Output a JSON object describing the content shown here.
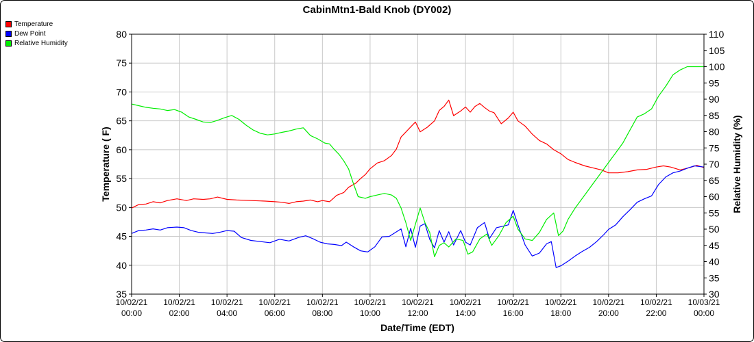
{
  "chart_data": {
    "type": "line",
    "title": "CabinMtn1-Bald Knob (DY002)",
    "xlabel": "Date/Time (EDT)",
    "ylabel": "Temperature ( F)",
    "y2label": "Relative Humidity (%)",
    "ylim": [
      35,
      80
    ],
    "y2lim": [
      30,
      110
    ],
    "xlim": [
      0,
      24
    ],
    "grid": true,
    "legend_position": "top-left",
    "x_ticks": [
      {
        "hour": 0,
        "date": "10/02/21",
        "time": "00:00"
      },
      {
        "hour": 2,
        "date": "10/02/21",
        "time": "02:00"
      },
      {
        "hour": 4,
        "date": "10/02/21",
        "time": "04:00"
      },
      {
        "hour": 6,
        "date": "10/02/21",
        "time": "06:00"
      },
      {
        "hour": 8,
        "date": "10/02/21",
        "time": "08:00"
      },
      {
        "hour": 10,
        "date": "10/02/21",
        "time": "10:00"
      },
      {
        "hour": 12,
        "date": "10/02/21",
        "time": "12:00"
      },
      {
        "hour": 14,
        "date": "10/02/21",
        "time": "14:00"
      },
      {
        "hour": 16,
        "date": "10/02/21",
        "time": "16:00"
      },
      {
        "hour": 18,
        "date": "10/02/21",
        "time": "18:00"
      },
      {
        "hour": 20,
        "date": "10/02/21",
        "time": "20:00"
      },
      {
        "hour": 22,
        "date": "10/02/21",
        "time": "22:00"
      },
      {
        "hour": 24,
        "date": "10/03/21",
        "time": "00:00"
      }
    ],
    "y_ticks": [
      35,
      40,
      45,
      50,
      55,
      60,
      65,
      70,
      75,
      80
    ],
    "y2_ticks": [
      30,
      35,
      40,
      45,
      50,
      55,
      60,
      65,
      70,
      75,
      80,
      85,
      90,
      95,
      100,
      105,
      110
    ],
    "series": [
      {
        "name": "Temperature",
        "color": "#ff0000",
        "axis": "left",
        "points": [
          [
            0,
            49.9
          ],
          [
            0.3,
            50.5
          ],
          [
            0.6,
            50.6
          ],
          [
            0.9,
            51.0
          ],
          [
            1.2,
            50.8
          ],
          [
            1.5,
            51.2
          ],
          [
            1.9,
            51.5
          ],
          [
            2.3,
            51.2
          ],
          [
            2.6,
            51.5
          ],
          [
            3.0,
            51.4
          ],
          [
            3.3,
            51.5
          ],
          [
            3.6,
            51.8
          ],
          [
            4.0,
            51.4
          ],
          [
            4.4,
            51.3
          ],
          [
            5.0,
            51.2
          ],
          [
            5.6,
            51.1
          ],
          [
            6.0,
            51.0
          ],
          [
            6.3,
            50.9
          ],
          [
            6.6,
            50.7
          ],
          [
            6.9,
            51.0
          ],
          [
            7.2,
            51.1
          ],
          [
            7.5,
            51.3
          ],
          [
            7.8,
            51.0
          ],
          [
            8.0,
            51.2
          ],
          [
            8.3,
            51.0
          ],
          [
            8.6,
            52.1
          ],
          [
            8.9,
            52.6
          ],
          [
            9.1,
            53.5
          ],
          [
            9.4,
            54.2
          ],
          [
            9.6,
            55.0
          ],
          [
            9.8,
            55.7
          ],
          [
            10.0,
            56.7
          ],
          [
            10.3,
            57.7
          ],
          [
            10.6,
            58.1
          ],
          [
            10.9,
            59.0
          ],
          [
            11.1,
            60.1
          ],
          [
            11.3,
            62.2
          ],
          [
            11.6,
            63.5
          ],
          [
            11.9,
            64.8
          ],
          [
            12.1,
            63.1
          ],
          [
            12.4,
            63.9
          ],
          [
            12.7,
            65.0
          ],
          [
            12.9,
            66.8
          ],
          [
            13.1,
            67.5
          ],
          [
            13.3,
            68.6
          ],
          [
            13.5,
            65.9
          ],
          [
            13.8,
            66.7
          ],
          [
            14.0,
            67.4
          ],
          [
            14.2,
            66.5
          ],
          [
            14.4,
            67.5
          ],
          [
            14.6,
            68.0
          ],
          [
            14.8,
            67.3
          ],
          [
            15.0,
            66.7
          ],
          [
            15.2,
            66.4
          ],
          [
            15.5,
            64.5
          ],
          [
            15.8,
            65.5
          ],
          [
            16.0,
            66.5
          ],
          [
            16.2,
            65.0
          ],
          [
            16.5,
            64.1
          ],
          [
            16.8,
            62.7
          ],
          [
            17.1,
            61.6
          ],
          [
            17.4,
            61.0
          ],
          [
            17.7,
            60.0
          ],
          [
            18.0,
            59.3
          ],
          [
            18.3,
            58.3
          ],
          [
            18.6,
            57.8
          ],
          [
            19.0,
            57.2
          ],
          [
            19.4,
            56.8
          ],
          [
            19.7,
            56.5
          ],
          [
            20.0,
            56.0
          ],
          [
            20.4,
            56.0
          ],
          [
            20.8,
            56.2
          ],
          [
            21.2,
            56.5
          ],
          [
            21.6,
            56.6
          ],
          [
            22.0,
            57.0
          ],
          [
            22.3,
            57.2
          ],
          [
            22.6,
            57.0
          ],
          [
            23.0,
            56.5
          ],
          [
            23.4,
            56.9
          ],
          [
            23.7,
            57.3
          ],
          [
            24.0,
            56.9
          ]
        ]
      },
      {
        "name": "Dew Point",
        "color": "#0000ff",
        "axis": "left",
        "points": [
          [
            0,
            45.5
          ],
          [
            0.3,
            46.0
          ],
          [
            0.6,
            46.1
          ],
          [
            0.9,
            46.3
          ],
          [
            1.2,
            46.1
          ],
          [
            1.5,
            46.5
          ],
          [
            1.9,
            46.6
          ],
          [
            2.2,
            46.5
          ],
          [
            2.5,
            46.0
          ],
          [
            2.8,
            45.7
          ],
          [
            3.1,
            45.6
          ],
          [
            3.4,
            45.5
          ],
          [
            3.7,
            45.7
          ],
          [
            4.0,
            46.0
          ],
          [
            4.3,
            45.9
          ],
          [
            4.6,
            44.8
          ],
          [
            5.0,
            44.3
          ],
          [
            5.4,
            44.1
          ],
          [
            5.8,
            43.9
          ],
          [
            6.2,
            44.5
          ],
          [
            6.6,
            44.2
          ],
          [
            7.0,
            44.8
          ],
          [
            7.3,
            45.1
          ],
          [
            7.6,
            44.6
          ],
          [
            7.9,
            44.0
          ],
          [
            8.2,
            43.7
          ],
          [
            8.5,
            43.6
          ],
          [
            8.8,
            43.4
          ],
          [
            9.0,
            44.0
          ],
          [
            9.3,
            43.2
          ],
          [
            9.6,
            42.5
          ],
          [
            9.9,
            42.3
          ],
          [
            10.2,
            43.2
          ],
          [
            10.5,
            44.9
          ],
          [
            10.8,
            45.0
          ],
          [
            11.0,
            45.5
          ],
          [
            11.3,
            46.3
          ],
          [
            11.5,
            43.2
          ],
          [
            11.7,
            46.4
          ],
          [
            11.9,
            43.1
          ],
          [
            12.1,
            46.8
          ],
          [
            12.3,
            47.2
          ],
          [
            12.5,
            44.5
          ],
          [
            12.7,
            43.0
          ],
          [
            12.9,
            46.0
          ],
          [
            13.1,
            44.0
          ],
          [
            13.3,
            45.8
          ],
          [
            13.5,
            43.5
          ],
          [
            13.8,
            46.0
          ],
          [
            14.0,
            44.0
          ],
          [
            14.2,
            43.5
          ],
          [
            14.5,
            46.5
          ],
          [
            14.8,
            47.4
          ],
          [
            15.0,
            44.6
          ],
          [
            15.3,
            46.5
          ],
          [
            15.6,
            46.8
          ],
          [
            15.8,
            47.0
          ],
          [
            16.0,
            49.5
          ],
          [
            16.2,
            47.0
          ],
          [
            16.5,
            43.5
          ],
          [
            16.8,
            41.6
          ],
          [
            17.1,
            42.1
          ],
          [
            17.4,
            43.7
          ],
          [
            17.6,
            44.1
          ],
          [
            17.8,
            39.6
          ],
          [
            18.0,
            39.9
          ],
          [
            18.3,
            40.7
          ],
          [
            18.6,
            41.6
          ],
          [
            18.9,
            42.4
          ],
          [
            19.2,
            43.1
          ],
          [
            19.5,
            44.1
          ],
          [
            19.8,
            45.3
          ],
          [
            20.0,
            46.2
          ],
          [
            20.3,
            47.0
          ],
          [
            20.6,
            48.4
          ],
          [
            20.9,
            49.6
          ],
          [
            21.2,
            50.9
          ],
          [
            21.5,
            51.5
          ],
          [
            21.8,
            52.0
          ],
          [
            22.1,
            54.0
          ],
          [
            22.4,
            55.3
          ],
          [
            22.7,
            56.0
          ],
          [
            23.0,
            56.3
          ],
          [
            23.3,
            56.8
          ],
          [
            23.6,
            57.2
          ],
          [
            24.0,
            57.0
          ]
        ]
      },
      {
        "name": "Relative Humidity",
        "color": "#00ee00",
        "axis": "right",
        "points": [
          [
            0,
            88.5
          ],
          [
            0.3,
            88.0
          ],
          [
            0.6,
            87.5
          ],
          [
            0.9,
            87.2
          ],
          [
            1.2,
            87.0
          ],
          [
            1.5,
            86.5
          ],
          [
            1.8,
            86.8
          ],
          [
            2.1,
            86.0
          ],
          [
            2.4,
            84.5
          ],
          [
            2.7,
            83.8
          ],
          [
            3.0,
            83.0
          ],
          [
            3.3,
            82.8
          ],
          [
            3.6,
            83.5
          ],
          [
            3.9,
            84.3
          ],
          [
            4.2,
            85.0
          ],
          [
            4.5,
            83.8
          ],
          [
            4.8,
            82.0
          ],
          [
            5.1,
            80.5
          ],
          [
            5.4,
            79.5
          ],
          [
            5.7,
            79.0
          ],
          [
            6.0,
            79.3
          ],
          [
            6.3,
            79.8
          ],
          [
            6.6,
            80.2
          ],
          [
            6.9,
            80.8
          ],
          [
            7.2,
            81.2
          ],
          [
            7.5,
            78.8
          ],
          [
            7.8,
            77.8
          ],
          [
            8.1,
            76.5
          ],
          [
            8.3,
            76.2
          ],
          [
            8.5,
            74.5
          ],
          [
            8.7,
            73.0
          ],
          [
            8.9,
            71.0
          ],
          [
            9.1,
            68.5
          ],
          [
            9.3,
            64.0
          ],
          [
            9.5,
            60.0
          ],
          [
            9.8,
            59.5
          ],
          [
            10.0,
            60.0
          ],
          [
            10.3,
            60.5
          ],
          [
            10.6,
            61.0
          ],
          [
            10.9,
            60.5
          ],
          [
            11.1,
            59.5
          ],
          [
            11.3,
            56.5
          ],
          [
            11.5,
            52.0
          ],
          [
            11.7,
            46.5
          ],
          [
            11.9,
            51.5
          ],
          [
            12.1,
            56.5
          ],
          [
            12.3,
            52.0
          ],
          [
            12.5,
            49.0
          ],
          [
            12.7,
            41.5
          ],
          [
            12.9,
            45.0
          ],
          [
            13.1,
            45.8
          ],
          [
            13.3,
            44.5
          ],
          [
            13.6,
            47.0
          ],
          [
            13.9,
            46.5
          ],
          [
            14.1,
            42.3
          ],
          [
            14.3,
            43.0
          ],
          [
            14.6,
            47.0
          ],
          [
            14.9,
            48.5
          ],
          [
            15.1,
            45.0
          ],
          [
            15.4,
            48.0
          ],
          [
            15.7,
            52.0
          ],
          [
            16.0,
            54.0
          ],
          [
            16.2,
            50.0
          ],
          [
            16.5,
            47.0
          ],
          [
            16.8,
            46.5
          ],
          [
            17.1,
            49.0
          ],
          [
            17.4,
            53.0
          ],
          [
            17.7,
            55.0
          ],
          [
            17.9,
            48.0
          ],
          [
            18.1,
            49.5
          ],
          [
            18.3,
            53.0
          ],
          [
            18.6,
            56.5
          ],
          [
            18.9,
            59.5
          ],
          [
            19.2,
            62.5
          ],
          [
            19.5,
            65.5
          ],
          [
            19.8,
            68.5
          ],
          [
            20.0,
            70.5
          ],
          [
            20.3,
            73.5
          ],
          [
            20.6,
            76.5
          ],
          [
            20.9,
            80.5
          ],
          [
            21.2,
            84.5
          ],
          [
            21.5,
            85.5
          ],
          [
            21.8,
            87.0
          ],
          [
            22.1,
            91.0
          ],
          [
            22.4,
            94.0
          ],
          [
            22.7,
            97.5
          ],
          [
            23.0,
            99.0
          ],
          [
            23.3,
            100.0
          ],
          [
            23.7,
            100.0
          ],
          [
            24.0,
            100.0
          ]
        ]
      }
    ]
  }
}
